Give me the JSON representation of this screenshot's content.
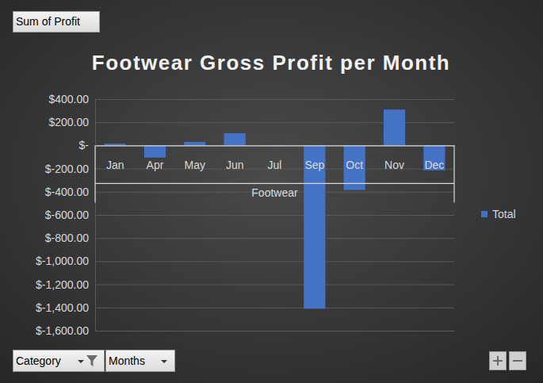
{
  "chart_data": {
    "type": "bar",
    "title": "Footwear Gross Profit per Month",
    "categories": [
      "Jan",
      "Apr",
      "May",
      "Jun",
      "Jul",
      "Sep",
      "Oct",
      "Nov",
      "Dec"
    ],
    "category_group": "Footwear",
    "series": [
      {
        "name": "Total",
        "color": "#4472c4",
        "values": [
          15,
          -105,
          30,
          105,
          -5,
          -1410,
          -385,
          310,
          -215
        ]
      }
    ],
    "ylim": [
      -1600,
      400
    ],
    "yticks": [
      {
        "value": -1600,
        "label": "$-1,600.00"
      },
      {
        "value": -1400,
        "label": "$-1,400.00"
      },
      {
        "value": -1200,
        "label": "$-1,200.00"
      },
      {
        "value": -1000,
        "label": "$-1,000.00"
      },
      {
        "value": -800,
        "label": "$-800.00"
      },
      {
        "value": -600,
        "label": "$-600.00"
      },
      {
        "value": -400,
        "label": "$-400.00"
      },
      {
        "value": -200,
        "label": "$-200.00"
      },
      {
        "value": 0,
        "label": "$-"
      },
      {
        "value": 200,
        "label": "$200.00"
      },
      {
        "value": 400,
        "label": "$400.00"
      }
    ],
    "grid": true,
    "legend": "right",
    "value_field": "Sum of Profit",
    "filter_fields": [
      "Category",
      "Months"
    ]
  }
}
